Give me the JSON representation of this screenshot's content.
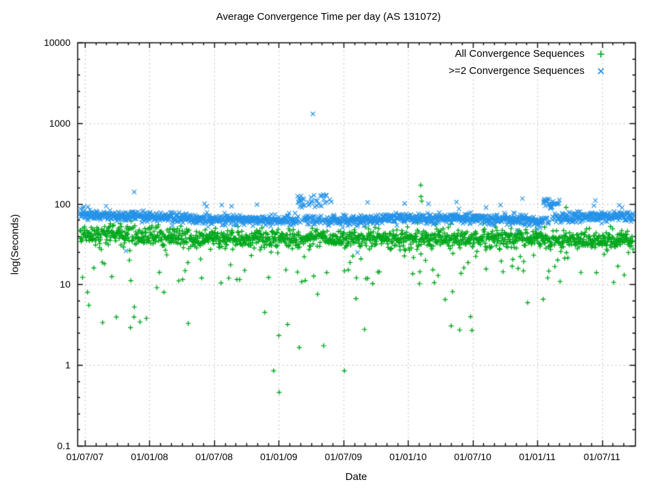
{
  "chart_data": {
    "type": "scatter",
    "title": "Average Convergence Time per day (AS 131072)",
    "xlabel": "Date",
    "ylabel": "log(Seconds)",
    "y_scale": "log10",
    "ylim": [
      0.1,
      10000
    ],
    "y_tick_labels": [
      "10000",
      "1000",
      "100",
      "10",
      "1",
      "0.1"
    ],
    "y_tick_values": [
      10000,
      1000,
      100,
      10,
      1,
      0.1
    ],
    "x_tick_labels": [
      "01/07/07",
      "01/01/08",
      "01/07/08",
      "01/01/09",
      "01/07/09",
      "01/01/10",
      "01/07/10",
      "01/01/11",
      "01/07/11"
    ],
    "grid": {
      "color": "#bdbdbd",
      "dash": [
        2,
        4
      ]
    },
    "axis_color": "#000000",
    "legend_position": "top-right-inside",
    "n_days": 1570,
    "seed": 1337,
    "series": [
      {
        "name": "All Convergence Sequences",
        "marker": "plus",
        "color": "#00a81c",
        "band_drift": [
          [
            0,
            1.63
          ],
          [
            0.1,
            1.615
          ],
          [
            0.22,
            1.565
          ],
          [
            0.35,
            1.57
          ],
          [
            0.5,
            1.565
          ],
          [
            0.65,
            1.56
          ],
          [
            0.8,
            1.565
          ],
          [
            0.9,
            1.555
          ],
          [
            1,
            1.55
          ]
        ],
        "sd_log": 0.058,
        "outlier_rules": [
          {
            "f0": 0.0,
            "f1": 1.0,
            "p": 0.055,
            "lo": 1.02,
            "hi": 1.44
          },
          {
            "f0": 0.0,
            "f1": 1.0,
            "p": 0.016,
            "lo": 0.35,
            "hi": 1.02
          },
          {
            "f0": 0.0,
            "f1": 1.0,
            "p": 0.0025,
            "lo": 0.15,
            "hi": 0.35
          },
          {
            "f0": 0.0,
            "f1": 0.12,
            "p": 0.03,
            "lo": 0.5,
            "hi": 1.0
          },
          {
            "f0": 0.0,
            "f1": 1.0,
            "p": 0.005,
            "lo": 1.7,
            "hi": 1.78
          }
        ],
        "points": [
          [
            0.616,
            170
          ],
          [
            0.6165,
            123
          ],
          [
            0.618,
            108
          ],
          [
            0.879,
            90
          ],
          [
            0.36,
            0.46
          ],
          [
            0.35,
            0.85
          ],
          [
            0.478,
            0.85
          ]
        ]
      },
      {
        "name": ">=2 Convergence Sequences",
        "marker": "cross",
        "color": "#2492e8",
        "band_drift": [
          [
            0,
            1.86
          ],
          [
            0.08,
            1.85
          ],
          [
            0.22,
            1.81
          ],
          [
            0.35,
            1.795
          ],
          [
            0.5,
            1.795
          ],
          [
            0.58,
            1.825
          ],
          [
            0.7,
            1.82
          ],
          [
            0.8,
            1.8
          ],
          [
            0.83,
            1.765
          ],
          [
            0.86,
            1.83
          ],
          [
            0.93,
            1.835
          ],
          [
            1,
            1.84
          ]
        ],
        "sd_log": 0.032,
        "outlier_rules": [
          {
            "f0": 0.392,
            "f1": 0.452,
            "p": 0.45,
            "lo": 1.95,
            "hi": 2.12
          },
          {
            "f0": 0.838,
            "f1": 0.868,
            "p": 0.55,
            "lo": 1.94,
            "hi": 2.06
          },
          {
            "f0": 0.0,
            "f1": 0.06,
            "p": 0.05,
            "lo": 1.92,
            "hi": 2.0
          },
          {
            "f0": 0.0,
            "f1": 1.0,
            "p": 0.008,
            "lo": 1.95,
            "hi": 2.03
          },
          {
            "f0": 0.0,
            "f1": 1.0,
            "p": 0.0015,
            "lo": 1.35,
            "hi": 1.45
          }
        ],
        "points": [
          [
            0.098,
            140
          ],
          [
            0.421,
            1300
          ],
          [
            0.083,
            26
          ],
          [
            0.8,
            116
          ],
          [
            0.932,
            110
          ],
          [
            0.225,
            100
          ],
          [
            0.52,
            104
          ],
          [
            0.63,
            100
          ],
          [
            0.975,
            96
          ]
        ]
      }
    ]
  }
}
